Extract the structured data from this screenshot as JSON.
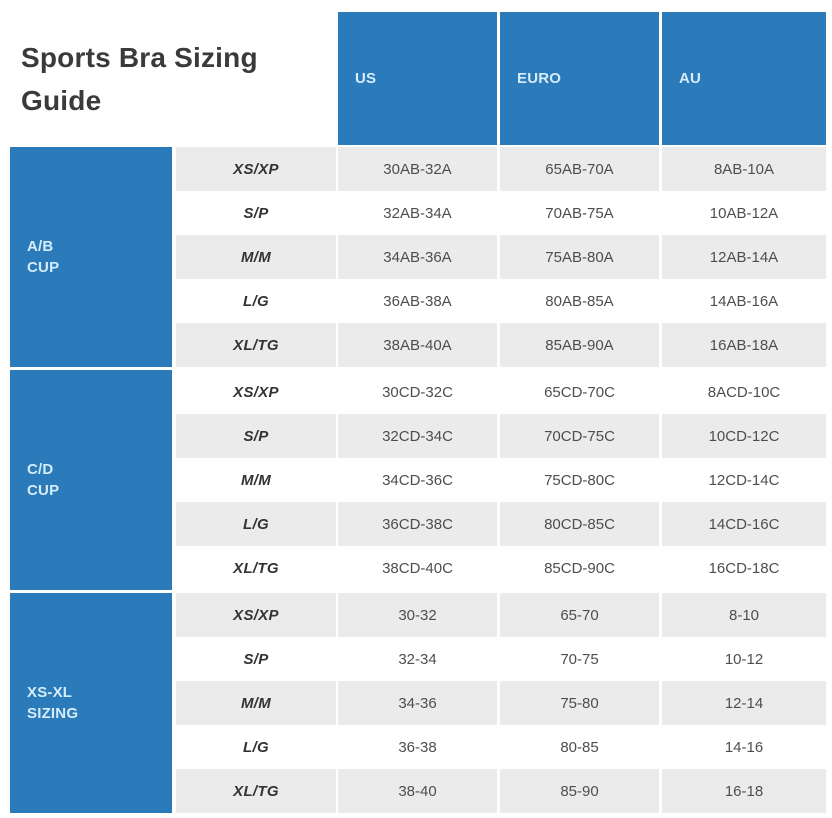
{
  "title_lines": [
    "Sports Bra Sizing",
    "Guide"
  ],
  "chart_data": {
    "type": "table",
    "title": "Sports Bra Sizing Guide",
    "columns": [
      "US",
      "EURO",
      "AU"
    ],
    "size_column_values": [
      "XS/XP",
      "S/P",
      "M/M",
      "L/G",
      "XL/TG"
    ],
    "sections": [
      {
        "group": "A/B CUP",
        "label_lines": [
          "A/B",
          "CUP"
        ],
        "rows": [
          {
            "size": "XS/XP",
            "us": "30AB-32A",
            "euro": "65AB-70A",
            "au": "8AB-10A"
          },
          {
            "size": "S/P",
            "us": "32AB-34A",
            "euro": "70AB-75A",
            "au": "10AB-12A"
          },
          {
            "size": "M/M",
            "us": "34AB-36A",
            "euro": "75AB-80A",
            "au": "12AB-14A"
          },
          {
            "size": "L/G",
            "us": "36AB-38A",
            "euro": "80AB-85A",
            "au": "14AB-16A"
          },
          {
            "size": "XL/TG",
            "us": "38AB-40A",
            "euro": "85AB-90A",
            "au": "16AB-18A"
          }
        ]
      },
      {
        "group": "C/D CUP",
        "label_lines": [
          "C/D",
          "CUP"
        ],
        "rows": [
          {
            "size": "XS/XP",
            "us": "30CD-32C",
            "euro": "65CD-70C",
            "au": "8ACD-10C"
          },
          {
            "size": "S/P",
            "us": "32CD-34C",
            "euro": "70CD-75C",
            "au": "10CD-12C"
          },
          {
            "size": "M/M",
            "us": "34CD-36C",
            "euro": "75CD-80C",
            "au": "12CD-14C"
          },
          {
            "size": "L/G",
            "us": "36CD-38C",
            "euro": "80CD-85C",
            "au": "14CD-16C"
          },
          {
            "size": "XL/TG",
            "us": "38CD-40C",
            "euro": "85CD-90C",
            "au": "16CD-18C"
          }
        ]
      },
      {
        "group": "XS-XL SIZING",
        "label_lines": [
          "XS-XL",
          "SIZING"
        ],
        "rows": [
          {
            "size": "XS/XP",
            "us": "30-32",
            "euro": "65-70",
            "au": "8-10"
          },
          {
            "size": "S/P",
            "us": "32-34",
            "euro": "70-75",
            "au": "10-12"
          },
          {
            "size": "M/M",
            "us": "34-36",
            "euro": "75-80",
            "au": "12-14"
          },
          {
            "size": "L/G",
            "us": "36-38",
            "euro": "80-85",
            "au": "14-16"
          },
          {
            "size": "XL/TG",
            "us": "38-40",
            "euro": "85-90",
            "au": "16-18"
          }
        ]
      }
    ]
  },
  "colors": {
    "blue": "#2b7ab9",
    "header_text": "#d6ecfa",
    "row_gray": "#ebebeb",
    "row_white": "#ffffff",
    "size_label_text": "#333333",
    "data_text": "#4e4e4e",
    "title_text": "#3a3a3c"
  }
}
